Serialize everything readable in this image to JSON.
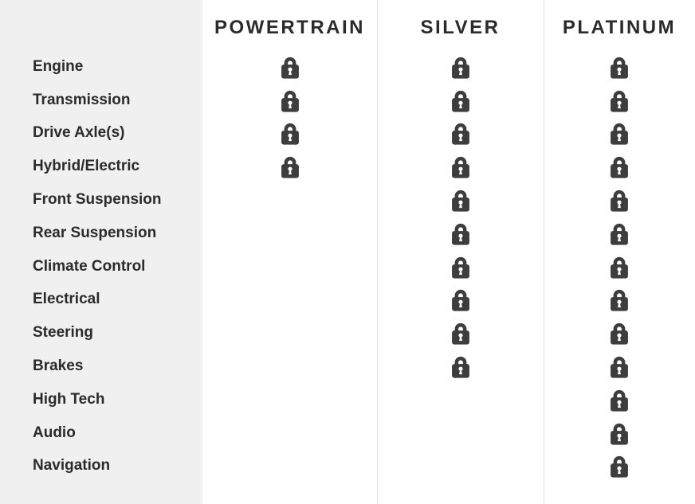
{
  "table": {
    "categories": [
      "Engine",
      "Transmission",
      "Drive Axle(s)",
      "Hybrid/Electric",
      "Front Suspension",
      "Rear Suspension",
      "Climate Control",
      "Electrical",
      "Steering",
      "Brakes",
      "High Tech",
      "Audio",
      "Navigation"
    ],
    "plans": [
      {
        "name": "POWERTRAIN",
        "covered": [
          true,
          true,
          true,
          true,
          false,
          false,
          false,
          false,
          false,
          false,
          false,
          false,
          false
        ]
      },
      {
        "name": "SILVER",
        "covered": [
          true,
          true,
          true,
          true,
          true,
          true,
          true,
          true,
          true,
          true,
          false,
          false,
          false
        ]
      },
      {
        "name": "PLATINUM",
        "covered": [
          true,
          true,
          true,
          true,
          true,
          true,
          true,
          true,
          true,
          true,
          true,
          true,
          true
        ]
      }
    ],
    "coverage_icon": "lock-icon",
    "colors": {
      "lock": "#3d3d3d",
      "text": "#2b2b2b",
      "sidebar_bg": "#f0f0f0",
      "divider": "#e0e0e0",
      "background": "#ffffff"
    }
  }
}
